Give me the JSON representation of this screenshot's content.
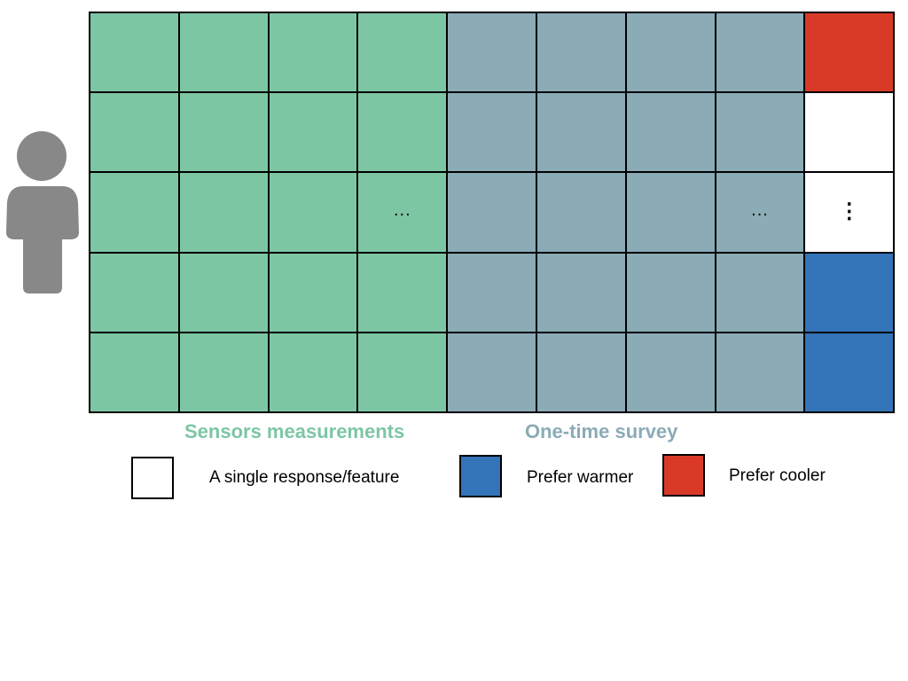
{
  "colors": {
    "sensor": "#7dc6a4",
    "survey": "#8babb6",
    "prefer_warmer": "#3474b8",
    "prefer_cooler": "#d93a27",
    "blank": "#ffffff",
    "person": "#888888"
  },
  "person_icon": "person-silhouette-icon",
  "grid": {
    "rows": 5,
    "sensor_columns": 4,
    "survey_columns": 4,
    "response_column": [
      "prefer_cooler",
      "blank",
      "blank",
      "prefer_warmer",
      "prefer_warmer"
    ],
    "ellipsis_row": 2,
    "horizontal_ellipsis": "...",
    "vertical_ellipsis": "⋮"
  },
  "labels": {
    "sensors": "Sensors measurements",
    "survey": "One-time survey"
  },
  "legend": {
    "single": "A single response/feature",
    "warmer": "Prefer warmer",
    "cooler": "Prefer cooler"
  }
}
